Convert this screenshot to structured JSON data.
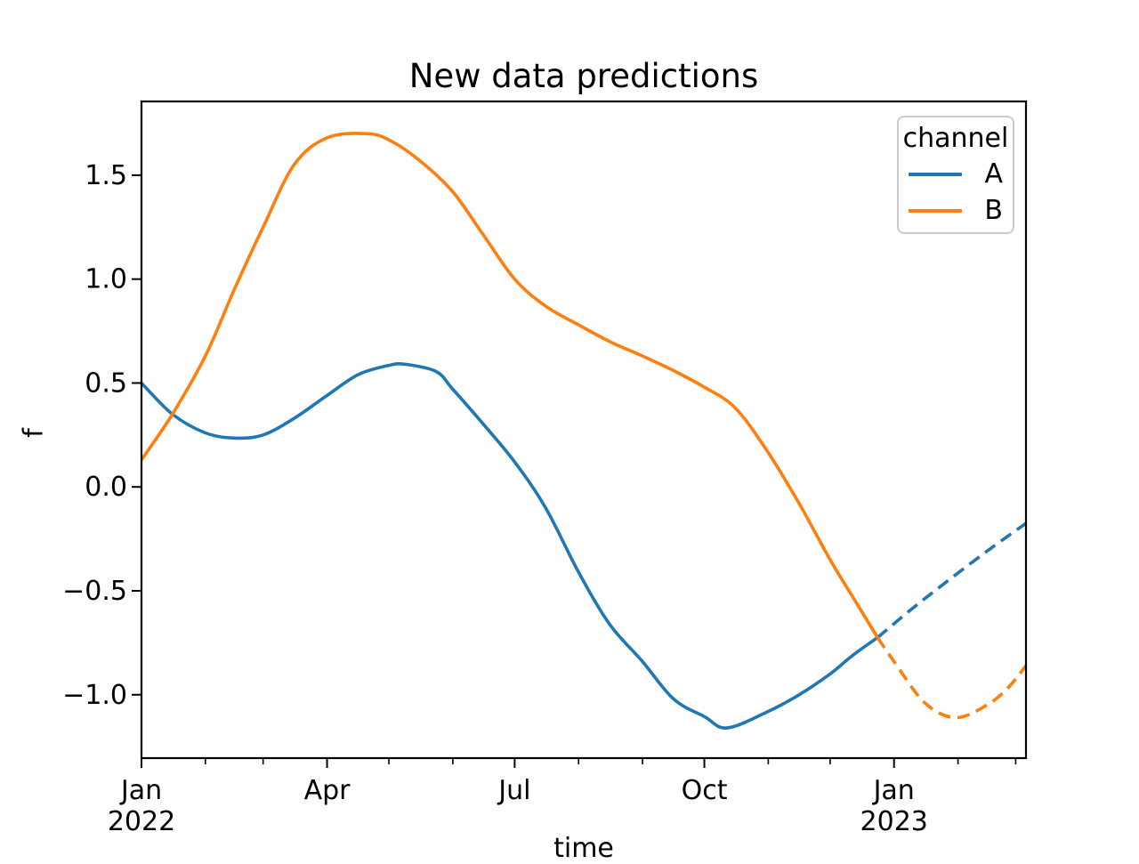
{
  "title": "New data predictions",
  "axis_labels": {
    "x": "time",
    "y": "f"
  },
  "legend": {
    "title": "channel",
    "items": [
      {
        "label": "A",
        "color": "#1f77b4"
      },
      {
        "label": "B",
        "color": "#ff7f0e"
      }
    ]
  },
  "chart_data": {
    "type": "line",
    "title": "New data predictions",
    "xlabel": "time",
    "ylabel": "f",
    "x_unit": "days since 2022-01-01",
    "xlim": [
      0,
      429
    ],
    "ylim": [
      -1.305,
      1.855
    ],
    "grid": false,
    "legend_position": "upper right",
    "legend_title": "channel",
    "x_major_ticks": [
      {
        "day": 0,
        "line1": "Jan",
        "line2": "2022"
      },
      {
        "day": 90,
        "line1": "Apr"
      },
      {
        "day": 181,
        "line1": "Jul"
      },
      {
        "day": 273,
        "line1": "Oct"
      },
      {
        "day": 365,
        "line1": "Jan",
        "line2": "2023"
      }
    ],
    "x_minor_tick_days": [
      31,
      59,
      120,
      151,
      212,
      243,
      304,
      334,
      396,
      424
    ],
    "y_ticks": [
      {
        "value": 1.5,
        "label": "1.5"
      },
      {
        "value": 1.0,
        "label": "1.0"
      },
      {
        "value": 0.5,
        "label": "0.5"
      },
      {
        "value": 0.0,
        "label": "0.0"
      },
      {
        "value": -0.5,
        "label": "−0.5"
      },
      {
        "value": -1.0,
        "label": "−1.0"
      }
    ],
    "series": [
      {
        "name": "A",
        "color": "#1f77b4",
        "segments": [
          {
            "style": "solid",
            "points": [
              [
                0,
                0.5
              ],
              [
                15,
                0.35
              ],
              [
                31,
                0.26
              ],
              [
                45,
                0.235
              ],
              [
                59,
                0.25
              ],
              [
                74,
                0.33
              ],
              [
                90,
                0.44
              ],
              [
                105,
                0.54
              ],
              [
                120,
                0.585
              ],
              [
                128,
                0.59
              ],
              [
                143,
                0.555
              ],
              [
                151,
                0.47
              ],
              [
                166,
                0.3
              ],
              [
                181,
                0.12
              ],
              [
                196,
                -0.1
              ],
              [
                212,
                -0.41
              ],
              [
                227,
                -0.66
              ],
              [
                243,
                -0.84
              ],
              [
                258,
                -1.02
              ],
              [
                273,
                -1.105
              ],
              [
                284,
                -1.16
              ],
              [
                304,
                -1.08
              ],
              [
                319,
                -1.0
              ],
              [
                334,
                -0.9
              ],
              [
                345,
                -0.81
              ],
              [
                357,
                -0.725
              ]
            ]
          },
          {
            "style": "dashed",
            "points": [
              [
                357,
                -0.725
              ],
              [
                372,
                -0.6
              ],
              [
                390,
                -0.46
              ],
              [
                410,
                -0.31
              ],
              [
                429,
                -0.175
              ]
            ]
          }
        ]
      },
      {
        "name": "B",
        "color": "#ff7f0e",
        "segments": [
          {
            "style": "solid",
            "points": [
              [
                0,
                0.13
              ],
              [
                15,
                0.35
              ],
              [
                31,
                0.63
              ],
              [
                45,
                0.95
              ],
              [
                59,
                1.25
              ],
              [
                74,
                1.55
              ],
              [
                90,
                1.68
              ],
              [
                109,
                1.7
              ],
              [
                120,
                1.67
              ],
              [
                135,
                1.57
              ],
              [
                151,
                1.42
              ],
              [
                166,
                1.21
              ],
              [
                181,
                1.0
              ],
              [
                196,
                0.87
              ],
              [
                212,
                0.78
              ],
              [
                227,
                0.7
              ],
              [
                243,
                0.63
              ],
              [
                258,
                0.56
              ],
              [
                273,
                0.48
              ],
              [
                288,
                0.38
              ],
              [
                304,
                0.165
              ],
              [
                319,
                -0.08
              ],
              [
                334,
                -0.35
              ],
              [
                345,
                -0.53
              ],
              [
                357,
                -0.725
              ]
            ]
          },
          {
            "style": "dashed",
            "points": [
              [
                357,
                -0.725
              ],
              [
                365,
                -0.84
              ],
              [
                380,
                -1.04
              ],
              [
                395,
                -1.11
              ],
              [
                410,
                -1.05
              ],
              [
                420,
                -0.97
              ],
              [
                429,
                -0.86
              ]
            ]
          }
        ]
      }
    ]
  }
}
